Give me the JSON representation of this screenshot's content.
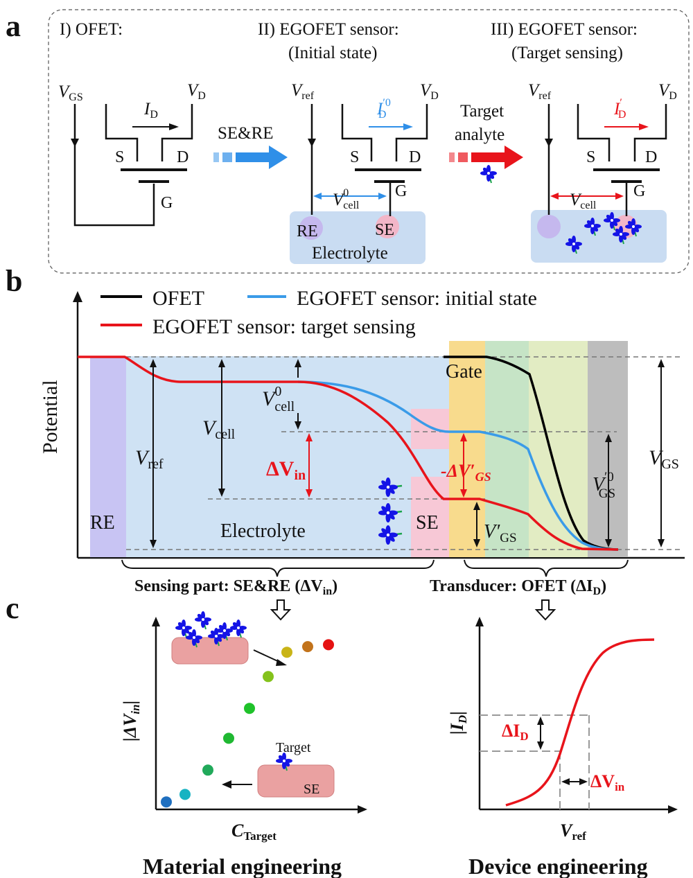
{
  "panel_a": {
    "label": "a",
    "stage1_title": "I) OFET:",
    "stage2_title": "II) EGOFET sensor:",
    "stage2_subtitle": "(Initial state)",
    "stage3_title": "III) EGOFET sensor:",
    "stage3_subtitle": "(Target sensing)",
    "v_gs": "V",
    "v_gs_sub": "GS",
    "v_d": "V",
    "v_d_sub": "D",
    "i_d": "I",
    "i_d_sub": "D",
    "v_ref": "V",
    "v_ref_sub": "ref",
    "s": "S",
    "d": "D",
    "g": "G",
    "arrow1_label": "SE&RE",
    "arrow2_label_1": "Target",
    "arrow2_label_2": "analyte",
    "i_d0_sup": "′0",
    "i_d_prime": "′",
    "v_cell0_sup": "0",
    "v_cell_sub": "cell",
    "re": "RE",
    "se": "SE",
    "electrolyte": "Electrolyte"
  },
  "panel_b": {
    "label": "b",
    "legend": [
      {
        "label": "OFET",
        "color": "#000000"
      },
      {
        "label": "EGOFET sensor: initial state",
        "color": "#3a9be8"
      },
      {
        "label": "EGOFET sensor: target sensing",
        "color": "#e8141b"
      }
    ],
    "ylabel": "Potential",
    "re": "RE",
    "electrolyte": "Electrolyte",
    "se": "SE",
    "gate": "Gate",
    "v_ref": "V",
    "v_ref_sub": "ref",
    "v_cell": "V",
    "v_cell_sub": "cell",
    "v_cell0_sup": "0",
    "delta_v_in": "ΔV",
    "delta_v_in_sub": "in",
    "delta_v_gs": "-ΔV′",
    "delta_v_gs_sub": "GS",
    "v_gs0": "V",
    "v_gs0_sup": "′0",
    "v_gs_prime": "V′",
    "v_gs_sub": "GS",
    "v_gs": "V",
    "sensing_part": "Sensing part: SE&RE (ΔV",
    "sensing_part_sub": "in",
    "sensing_part_end": ")",
    "transducer": "Transducer: OFET (ΔI",
    "transducer_sub": "D",
    "transducer_end": ")"
  },
  "panel_c": {
    "label": "c",
    "left": {
      "ylabel": "|ΔV",
      "ylabel_sub": "in",
      "ylabel_end": "|",
      "xlabel": "C",
      "xlabel_sub": "Target",
      "target": "Target",
      "se": "SE",
      "caption": "Material engineering",
      "points": [
        {
          "x": 0.5,
          "y": 0.4,
          "color": "#1f6fbf"
        },
        {
          "x": 1.4,
          "y": 0.8,
          "color": "#17b3c2"
        },
        {
          "x": 2.5,
          "y": 2.1,
          "color": "#21a95a"
        },
        {
          "x": 3.5,
          "y": 3.8,
          "color": "#1fb832"
        },
        {
          "x": 4.5,
          "y": 5.4,
          "color": "#1fc22a"
        },
        {
          "x": 5.4,
          "y": 7.1,
          "color": "#84c21c"
        },
        {
          "x": 6.3,
          "y": 8.4,
          "color": "#c9b417"
        },
        {
          "x": 7.3,
          "y": 8.7,
          "color": "#c2731b"
        },
        {
          "x": 8.3,
          "y": 8.8,
          "color": "#e51212"
        }
      ]
    },
    "right": {
      "ylabel": "|I",
      "ylabel_sub": "D",
      "ylabel_end": "|",
      "xlabel": "V",
      "xlabel_sub": "ref",
      "delta_i": "ΔI",
      "delta_i_sub": "D",
      "delta_v": "ΔV",
      "delta_v_sub": "in",
      "caption": "Device engineering"
    }
  }
}
